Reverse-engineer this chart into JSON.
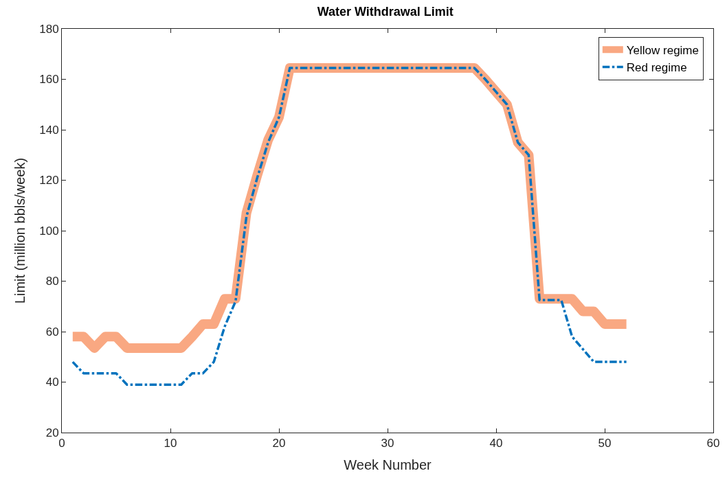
{
  "chart_data": {
    "type": "line",
    "title": "Water Withdrawal Limit",
    "xlabel": "Week Number",
    "ylabel": "Limit (million bbls/week)",
    "x": [
      1,
      2,
      3,
      4,
      5,
      6,
      7,
      8,
      9,
      10,
      11,
      12,
      13,
      14,
      15,
      16,
      17,
      18,
      19,
      20,
      21,
      22,
      23,
      24,
      25,
      26,
      27,
      28,
      29,
      30,
      31,
      32,
      33,
      34,
      35,
      36,
      37,
      38,
      39,
      40,
      41,
      42,
      43,
      44,
      45,
      46,
      47,
      48,
      49,
      50,
      51,
      52
    ],
    "series": [
      {
        "name": "Yellow regime",
        "color": "#f9a882",
        "line_style": "solid",
        "values": [
          58,
          58,
          53.5,
          58,
          58,
          53.5,
          53.5,
          53.5,
          53.5,
          53.5,
          53.5,
          58,
          63,
          63,
          73,
          73,
          107,
          122,
          136,
          145,
          164.5,
          164.5,
          164.5,
          164.5,
          164.5,
          164.5,
          164.5,
          164.5,
          164.5,
          164.5,
          164.5,
          164.5,
          164.5,
          164.5,
          164.5,
          164.5,
          164.5,
          164.5,
          160,
          155,
          150,
          135,
          130,
          73,
          73,
          73,
          73,
          68,
          68,
          63,
          63,
          63
        ]
      },
      {
        "name": "Red regime",
        "color": "#0072bd",
        "line_style": "dashdot",
        "values": [
          48,
          43.5,
          43.5,
          43.5,
          43.5,
          39,
          39,
          39,
          39,
          39,
          39,
          43.5,
          43.5,
          48,
          62,
          72,
          105.5,
          121,
          135,
          145,
          164.5,
          164.5,
          164.5,
          164.5,
          164.5,
          164.5,
          164.5,
          164.5,
          164.5,
          164.5,
          164.5,
          164.5,
          164.5,
          164.5,
          164.5,
          164.5,
          164.5,
          164.5,
          160,
          155,
          150,
          135,
          130,
          72.5,
          72.5,
          72.5,
          58,
          53,
          48,
          48,
          48,
          48
        ]
      }
    ],
    "xlim": [
      0,
      60
    ],
    "xticks": [
      0,
      10,
      20,
      30,
      40,
      50,
      60
    ],
    "ylim": [
      20,
      180
    ],
    "yticks": [
      20,
      40,
      60,
      80,
      100,
      120,
      140,
      160,
      180
    ],
    "grid": false,
    "legend": "top right",
    "marker": "none"
  }
}
